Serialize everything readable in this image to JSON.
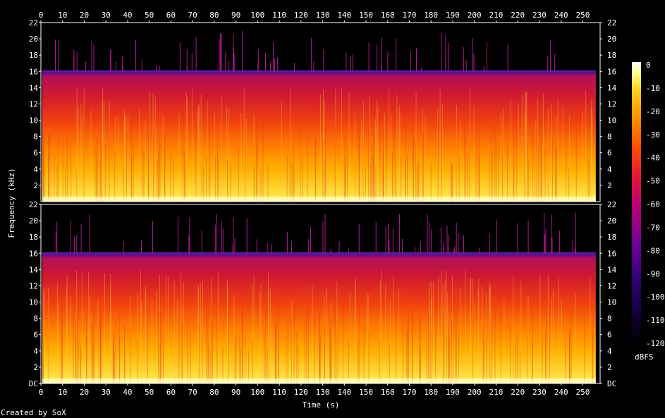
{
  "chart_data": {
    "type": "heatmap",
    "title": "",
    "xlabel": "Time (s)",
    "ylabel": "Frequency (kHz)",
    "xlim": [
      0,
      258
    ],
    "x_ticks": [
      0,
      10,
      20,
      30,
      40,
      50,
      60,
      70,
      80,
      90,
      100,
      110,
      120,
      130,
      140,
      150,
      160,
      170,
      180,
      190,
      200,
      210,
      220,
      230,
      240,
      250
    ],
    "ylim_khz": [
      0,
      22
    ],
    "y_tick_labels": [
      "DC",
      "2",
      "4",
      "6",
      "8",
      "10",
      "12",
      "14",
      "16",
      "18",
      "20",
      "22"
    ],
    "y_tick_values": [
      0,
      2,
      4,
      6,
      8,
      10,
      12,
      14,
      16,
      18,
      20,
      22
    ],
    "channels": [
      {
        "channel": 1,
        "bandwidth_cutoff_khz": 16,
        "audio_end_s": 256
      },
      {
        "channel": 2,
        "bandwidth_cutoff_khz": 16,
        "audio_end_s": 256
      }
    ],
    "colorbar": {
      "label": "dBFS",
      "range": [
        -120,
        0
      ],
      "ticks": [
        0,
        -10,
        -20,
        -30,
        -40,
        -50,
        -60,
        -70,
        -80,
        -90,
        -100,
        -110,
        -120
      ],
      "colors": [
        "#000000",
        "#1a0050",
        "#5a0096",
        "#a00090",
        "#d01040",
        "#f03010",
        "#ff7a00",
        "#ffc000",
        "#ffff80",
        "#ffffff"
      ]
    },
    "grid": false,
    "legend": "right"
  },
  "footer": {
    "credit": "Created by SoX"
  }
}
